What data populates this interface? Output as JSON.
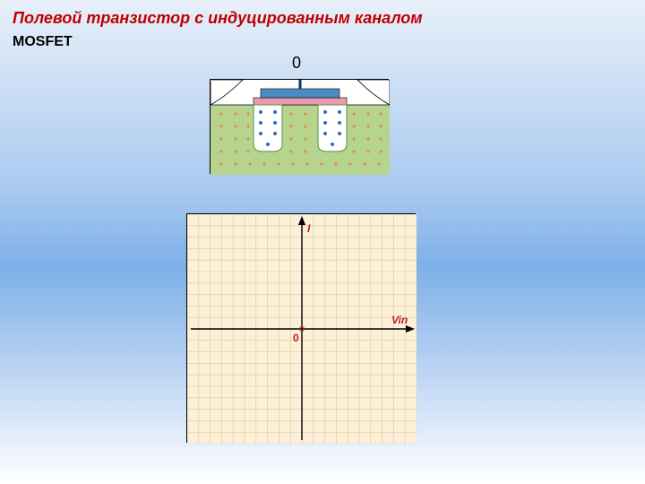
{
  "title": "Полевой транзистор с индуцированным каналом",
  "subtitle": "MOSFET",
  "top_label": "0",
  "title_color": "#c00000",
  "subtitle_color": "#000000",
  "mosfet": {
    "bg_top": "#ffffff",
    "bg_bottom": "#b7d48f",
    "gate_metal": "#4b8bc4",
    "gate_oxide": "#e89bb0",
    "well_border": "#5a8f3a",
    "electron_color": "#2a6cc2",
    "hole_color": "#d98c3a"
  },
  "graph": {
    "bg": "#fcf0d8",
    "grid_color": "#d8c8a0",
    "axis_color": "#000000",
    "label_color": "#c02020",
    "y_label": "I",
    "x_label": "Vin",
    "origin_label": "0",
    "grid_step": 12.8,
    "cells": 20
  }
}
